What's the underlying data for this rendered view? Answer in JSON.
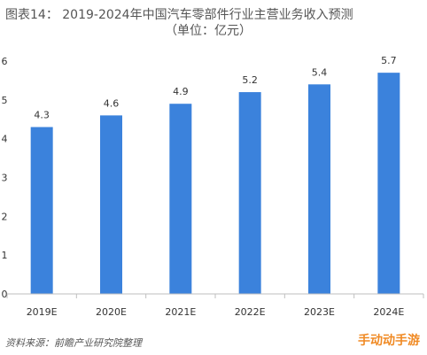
{
  "title_line1": "图表14：  2019-2024年中国汽车零部件行业主营业务收入预测",
  "title_line2": "（单位：亿元）",
  "source": "资料来源：前瞻产业研究院整理",
  "corner_logo": "手动动手游",
  "watermark_icon": "qianzhan-watermark-icon",
  "colors": {
    "bar": "#3b82dc",
    "axis": "#bfbfbf",
    "text": "#333333"
  },
  "chart_data": {
    "type": "bar",
    "title": "2019-2024年中国汽车零部件行业主营业务收入预测",
    "xlabel": "",
    "ylabel": "",
    "categories": [
      "2019E",
      "2020E",
      "2021E",
      "2022E",
      "2023E",
      "2024E"
    ],
    "values": [
      4.3,
      4.6,
      4.9,
      5.2,
      5.4,
      5.7
    ],
    "value_labels": [
      "4.3",
      "4.6",
      "4.9",
      "5.2",
      "5.4",
      "5.7"
    ],
    "ylim": [
      0,
      6
    ],
    "yticks": [
      "0",
      "1",
      "2",
      "3",
      "4",
      "5",
      "6"
    ],
    "grid": false,
    "legend": "none"
  }
}
